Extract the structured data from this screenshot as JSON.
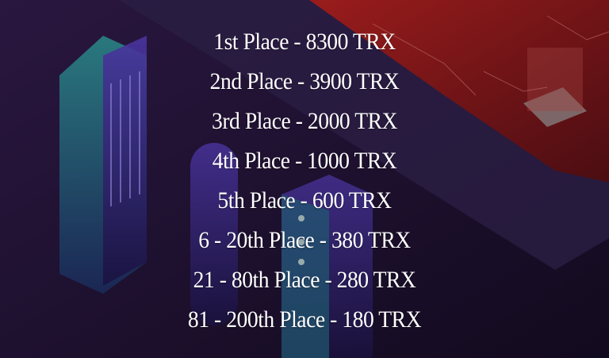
{
  "prizes": [
    "1st Place - 8300 TRX",
    "2nd Place - 3900 TRX",
    "3rd Place - 2000 TRX",
    "4th Place - 1000 TRX",
    "5th Place - 600 TRX",
    "6 - 20th Place - 380 TRX",
    "21 - 80th Place - 280 TRX",
    "81 - 200th Place - 180 TRX"
  ],
  "colors": {
    "background": "#170c24",
    "accent_red": "#7a1414",
    "building_teal": "#1f6f78",
    "building_purple": "#3b2a8a",
    "text": "#ffffff"
  }
}
